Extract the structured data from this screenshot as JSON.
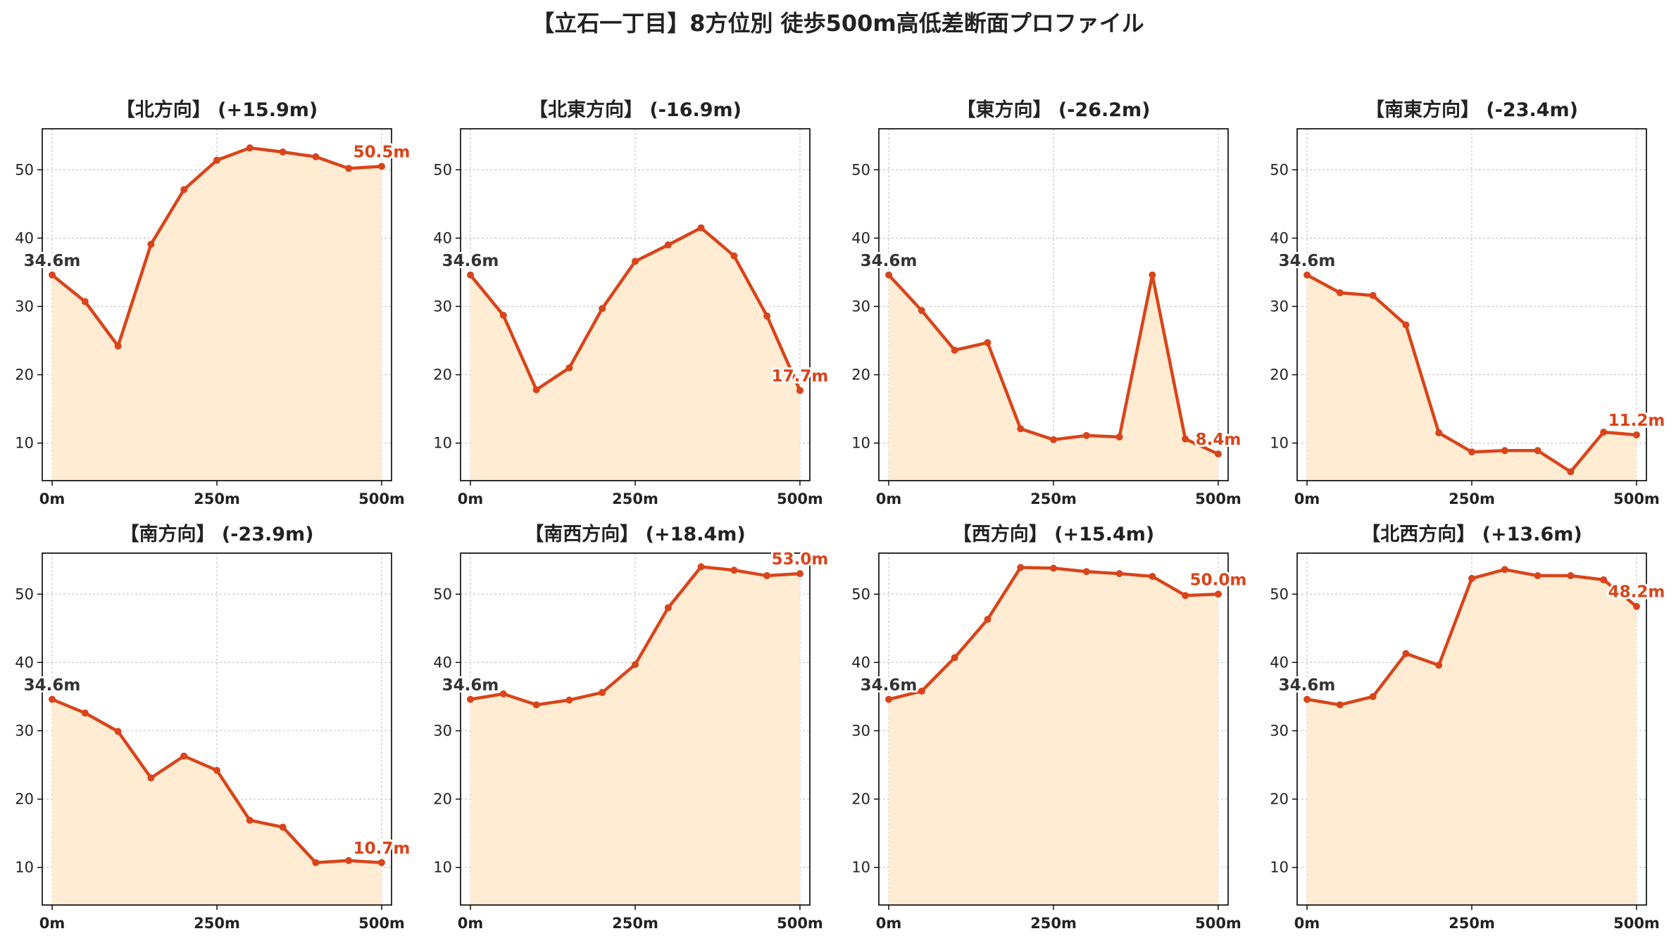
{
  "figure": {
    "title": "【立石一丁目】8方位別 徒歩500m高低差断面プロファイル"
  },
  "colors": {
    "line": "#d9441a",
    "fill": "#ffecd2",
    "start_label": "#333333",
    "end_label": "#d9441a"
  },
  "chart_data": [
    {
      "type": "area",
      "title": "【北方向】 (+15.9m)",
      "x": [
        0,
        50,
        100,
        150,
        200,
        250,
        300,
        350,
        400,
        450,
        500
      ],
      "x_ticks": [
        0,
        250,
        500
      ],
      "x_tick_labels": [
        "0m",
        "250m",
        "500m"
      ],
      "values": [
        34.6,
        30.7,
        24.2,
        39.1,
        47.1,
        51.4,
        53.2,
        52.6,
        51.9,
        50.2,
        50.5
      ],
      "y_ticks": [
        10,
        20,
        30,
        40,
        50
      ],
      "ylim": [
        4.5,
        56
      ],
      "xlim": [
        -15,
        515
      ],
      "start_label": "34.6m",
      "end_label": "50.5m",
      "grid": true
    },
    {
      "type": "area",
      "title": "【北東方向】 (-16.9m)",
      "x": [
        0,
        50,
        100,
        150,
        200,
        250,
        300,
        350,
        400,
        450,
        500
      ],
      "x_ticks": [
        0,
        250,
        500
      ],
      "x_tick_labels": [
        "0m",
        "250m",
        "500m"
      ],
      "values": [
        34.6,
        28.7,
        17.8,
        21.0,
        29.7,
        36.6,
        39.0,
        41.5,
        37.4,
        28.6,
        17.7
      ],
      "y_ticks": [
        10,
        20,
        30,
        40,
        50
      ],
      "ylim": [
        4.5,
        56
      ],
      "xlim": [
        -15,
        515
      ],
      "start_label": "34.6m",
      "end_label": "17.7m",
      "grid": true
    },
    {
      "type": "area",
      "title": "【東方向】 (-26.2m)",
      "x": [
        0,
        50,
        100,
        150,
        200,
        250,
        300,
        350,
        400,
        450,
        500
      ],
      "x_ticks": [
        0,
        250,
        500
      ],
      "x_tick_labels": [
        "0m",
        "250m",
        "500m"
      ],
      "values": [
        34.6,
        29.4,
        23.6,
        24.7,
        12.1,
        10.5,
        11.1,
        10.9,
        34.6,
        10.6,
        8.4
      ],
      "y_ticks": [
        10,
        20,
        30,
        40,
        50
      ],
      "ylim": [
        4.5,
        56
      ],
      "xlim": [
        -15,
        515
      ],
      "start_label": "34.6m",
      "end_label": "8.4m",
      "grid": true
    },
    {
      "type": "area",
      "title": "【南東方向】 (-23.4m)",
      "x": [
        0,
        50,
        100,
        150,
        200,
        250,
        300,
        350,
        400,
        450,
        500
      ],
      "x_ticks": [
        0,
        250,
        500
      ],
      "x_tick_labels": [
        "0m",
        "250m",
        "500m"
      ],
      "values": [
        34.6,
        32.0,
        31.6,
        27.3,
        11.5,
        8.7,
        8.9,
        8.9,
        5.8,
        11.6,
        11.2
      ],
      "y_ticks": [
        10,
        20,
        30,
        40,
        50
      ],
      "ylim": [
        4.5,
        56
      ],
      "xlim": [
        -15,
        515
      ],
      "start_label": "34.6m",
      "end_label": "11.2m",
      "grid": true
    },
    {
      "type": "area",
      "title": "【南方向】 (-23.9m)",
      "x": [
        0,
        50,
        100,
        150,
        200,
        250,
        300,
        350,
        400,
        450,
        500
      ],
      "x_ticks": [
        0,
        250,
        500
      ],
      "x_tick_labels": [
        "0m",
        "250m",
        "500m"
      ],
      "values": [
        34.6,
        32.6,
        29.9,
        23.1,
        26.3,
        24.2,
        16.9,
        15.9,
        10.7,
        11.0,
        10.7
      ],
      "y_ticks": [
        10,
        20,
        30,
        40,
        50
      ],
      "ylim": [
        4.5,
        56
      ],
      "xlim": [
        -15,
        515
      ],
      "start_label": "34.6m",
      "end_label": "10.7m",
      "grid": true
    },
    {
      "type": "area",
      "title": "【南西方向】 (+18.4m)",
      "x": [
        0,
        50,
        100,
        150,
        200,
        250,
        300,
        350,
        400,
        450,
        500
      ],
      "x_ticks": [
        0,
        250,
        500
      ],
      "x_tick_labels": [
        "0m",
        "250m",
        "500m"
      ],
      "values": [
        34.6,
        35.4,
        33.8,
        34.5,
        35.6,
        39.7,
        48.0,
        54.0,
        53.5,
        52.7,
        53.0
      ],
      "y_ticks": [
        10,
        20,
        30,
        40,
        50
      ],
      "ylim": [
        4.5,
        56
      ],
      "xlim": [
        -15,
        515
      ],
      "start_label": "34.6m",
      "end_label": "53.0m",
      "grid": true
    },
    {
      "type": "area",
      "title": "【西方向】 (+15.4m)",
      "x": [
        0,
        50,
        100,
        150,
        200,
        250,
        300,
        350,
        400,
        450,
        500
      ],
      "x_ticks": [
        0,
        250,
        500
      ],
      "x_tick_labels": [
        "0m",
        "250m",
        "500m"
      ],
      "values": [
        34.6,
        35.8,
        40.7,
        46.3,
        53.9,
        53.8,
        53.3,
        53.0,
        52.6,
        49.8,
        50.0
      ],
      "y_ticks": [
        10,
        20,
        30,
        40,
        50
      ],
      "ylim": [
        4.5,
        56
      ],
      "xlim": [
        -15,
        515
      ],
      "start_label": "34.6m",
      "end_label": "50.0m",
      "grid": true
    },
    {
      "type": "area",
      "title": "【北西方向】 (+13.6m)",
      "x": [
        0,
        50,
        100,
        150,
        200,
        250,
        300,
        350,
        400,
        450,
        500
      ],
      "x_ticks": [
        0,
        250,
        500
      ],
      "x_tick_labels": [
        "0m",
        "250m",
        "500m"
      ],
      "values": [
        34.6,
        33.8,
        35.0,
        41.3,
        39.6,
        52.3,
        53.6,
        52.7,
        52.7,
        52.1,
        48.2
      ],
      "y_ticks": [
        10,
        20,
        30,
        40,
        50
      ],
      "ylim": [
        4.5,
        56
      ],
      "xlim": [
        -15,
        515
      ],
      "start_label": "34.6m",
      "end_label": "48.2m",
      "grid": true
    }
  ]
}
